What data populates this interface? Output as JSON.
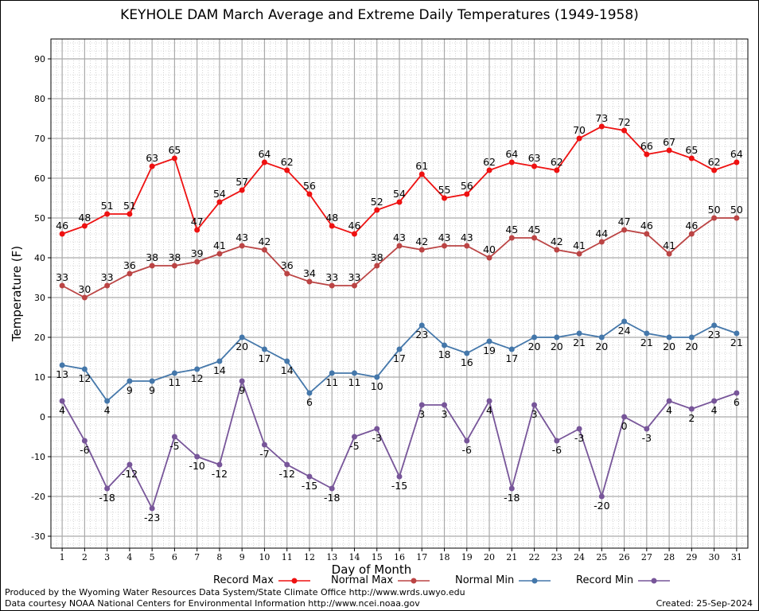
{
  "title": "KEYHOLE DAM March Average and Extreme Daily Temperatures (1949-1958)",
  "footer": {
    "produced_by": "Produced by the Wyoming Water Resources Data System/State Climate Office http://www.wrds.uwyo.edu",
    "courtesy": "Data courtesy NOAA National Centers for Environmental Information http://www.ncei.noaa.gov",
    "created": "Created:  25-Sep-2024"
  },
  "chart_data": {
    "type": "line",
    "title": "KEYHOLE DAM March Average and Extreme Daily Temperatures (1949-1958)",
    "xlabel": "Day of Month",
    "ylabel": "Temperature (F)",
    "ylim": [
      -33,
      95
    ],
    "yticks": [
      -30,
      -20,
      -10,
      0,
      10,
      20,
      30,
      40,
      50,
      60,
      70,
      80,
      90
    ],
    "x": [
      1,
      2,
      3,
      4,
      5,
      6,
      7,
      8,
      9,
      10,
      11,
      12,
      13,
      14,
      15,
      16,
      17,
      18,
      19,
      20,
      21,
      22,
      23,
      24,
      25,
      26,
      27,
      28,
      29,
      30,
      31
    ],
    "grid": true,
    "legend_position": "bottom",
    "series": [
      {
        "name": "Record Max",
        "color": "#ee1111",
        "values": [
          46,
          48,
          51,
          51,
          63,
          65,
          47,
          54,
          57,
          64,
          62,
          56,
          48,
          46,
          52,
          54,
          61,
          55,
          56,
          62,
          64,
          63,
          62,
          70,
          73,
          72,
          66,
          67,
          65,
          62,
          64
        ]
      },
      {
        "name": "Normal Max",
        "color": "#bb4444",
        "values": [
          33,
          30,
          33,
          36,
          38,
          38,
          39,
          41,
          43,
          42,
          36,
          34,
          33,
          33,
          38,
          43,
          42,
          43,
          43,
          40,
          45,
          45,
          42,
          41,
          44,
          47,
          46,
          41,
          46,
          50,
          50
        ]
      },
      {
        "name": "Normal Min",
        "color": "#4477aa",
        "values": [
          13,
          12,
          4,
          9,
          9,
          11,
          12,
          14,
          20,
          17,
          14,
          6,
          11,
          11,
          10,
          17,
          23,
          18,
          16,
          19,
          17,
          20,
          20,
          21,
          20,
          24,
          21,
          20,
          20,
          23,
          21
        ]
      },
      {
        "name": "Record Min",
        "color": "#775599",
        "values": [
          4,
          -6,
          -18,
          -12,
          -23,
          -5,
          -10,
          -12,
          9,
          -7,
          -12,
          -15,
          -18,
          -5,
          -3,
          -15,
          3,
          3,
          -6,
          4,
          -18,
          3,
          -6,
          -3,
          -20,
          0,
          -3,
          4,
          2,
          4,
          6
        ]
      }
    ]
  }
}
